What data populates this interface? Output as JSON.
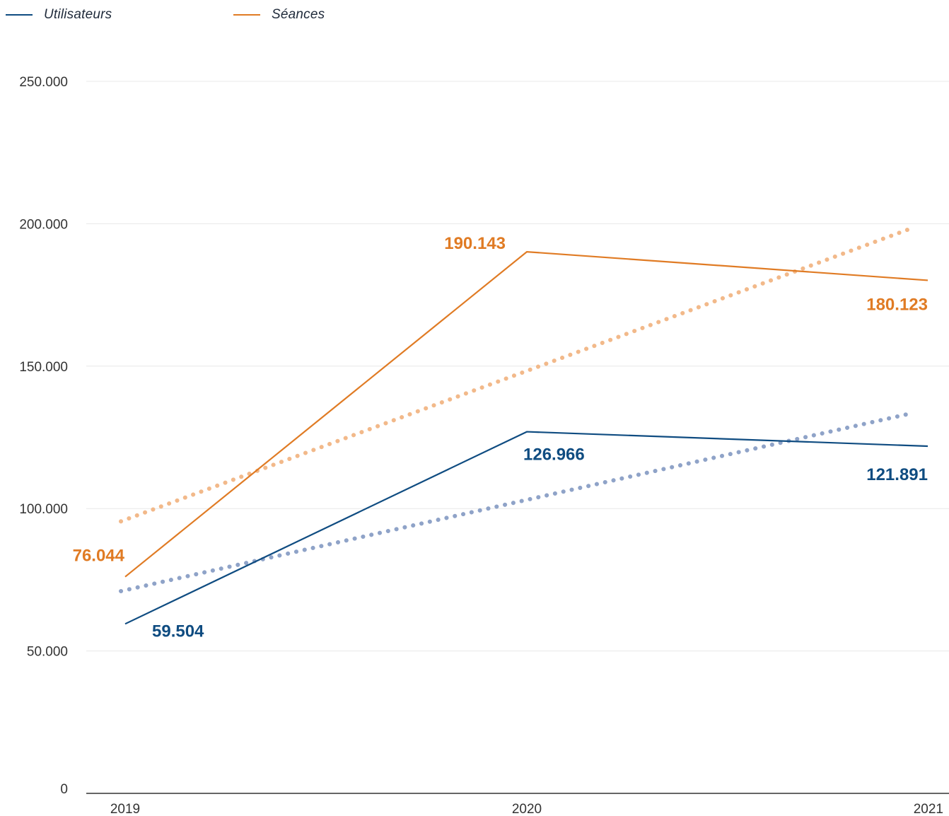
{
  "legend": {
    "users_label": "Utilisateurs",
    "sessions_label": "Séances"
  },
  "colors": {
    "users": "#0f4c81",
    "users_trend": "#8fa3c8",
    "sessions": "#e07b24",
    "sessions_trend": "#f2b98a",
    "grid": "#e8e8e8",
    "axis": "#333333",
    "tick_text": "#333333"
  },
  "chart_data": {
    "type": "line",
    "title": "",
    "xlabel": "",
    "ylabel": "",
    "x": [
      "2019",
      "2020",
      "2021"
    ],
    "ylim": [
      0,
      250000
    ],
    "yticks": [
      0,
      50000,
      100000,
      150000,
      200000,
      250000
    ],
    "ytick_labels": [
      "0",
      "50.000",
      "100.000",
      "150.000",
      "200.000",
      "250.000"
    ],
    "grid": true,
    "legend_position": "top-left",
    "series": [
      {
        "name": "Utilisateurs",
        "key": "users",
        "values": [
          59504,
          126966,
          121891
        ],
        "labels": [
          "59.504",
          "126.966",
          "121.891"
        ],
        "trendline": {
          "style": "dotted",
          "values": [
            71000,
            102000,
            133500
          ]
        }
      },
      {
        "name": "Séances",
        "key": "sessions",
        "values": [
          76044,
          190143,
          180123
        ],
        "labels": [
          "76.044",
          "190.143",
          "180.123"
        ],
        "trendline": {
          "style": "dotted",
          "values": [
            95500,
            148000,
            198500
          ]
        }
      }
    ]
  }
}
